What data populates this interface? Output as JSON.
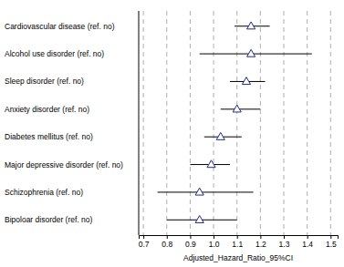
{
  "chart_data": {
    "type": "forest",
    "categories": [
      "Cardiovascular disease (ref. no)",
      "Alcohol use disorder (ref. no)",
      "Sleep disorder (ref. no)",
      "Anxiety disorder (ref. no)",
      "Diabetes mellitus (ref. no)",
      "Major depressive disorder (ref. no)",
      "Schizophrenia (ref. no)",
      "Bipoloar disorder (ref. no)"
    ],
    "values": [
      1.16,
      1.16,
      1.14,
      1.1,
      1.03,
      0.99,
      0.94,
      0.94
    ],
    "ci_lower": [
      1.09,
      0.94,
      1.07,
      1.03,
      0.96,
      0.9,
      0.76,
      0.8
    ],
    "ci_upper": [
      1.24,
      1.42,
      1.22,
      1.2,
      1.12,
      1.07,
      1.17,
      1.1
    ],
    "x_label": "Adjusted_Hazard_Ratio_95%CI",
    "xlim": [
      0.68,
      1.53
    ],
    "xticks": [
      0.7,
      0.8,
      0.9,
      {
        "value": 1,
        "label": "1.0"
      },
      1.1,
      1.2,
      1.3,
      1.4,
      1.5
    ],
    "grid": true,
    "color": "#1f2a8a",
    "marker": "triangle"
  }
}
